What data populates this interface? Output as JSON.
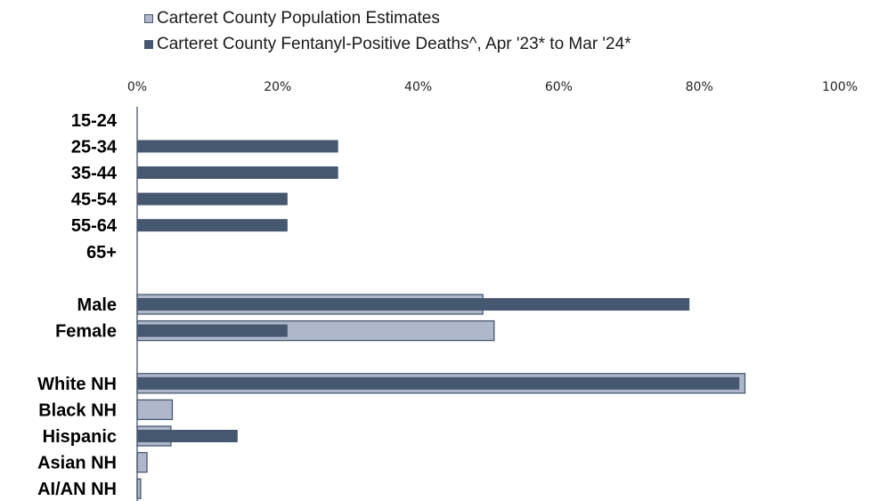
{
  "chart_data": {
    "type": "bar",
    "orientation": "horizontal",
    "legend_position": "top",
    "grid": false,
    "xlim": [
      0,
      100
    ],
    "x_ticks": [
      "0%",
      "20%",
      "40%",
      "60%",
      "80%",
      "100%"
    ],
    "categories": [
      "15-24",
      "25-34",
      "35-44",
      "45-54",
      "55-64",
      "65+",
      "",
      "Male",
      "Female",
      "",
      "White NH",
      "Black NH",
      "Hispanic",
      "Asian NH",
      "AI/AN NH"
    ],
    "series": [
      {
        "name": "Carteret County Population Estimates",
        "color": "#aeb8ca",
        "values": [
          null,
          null,
          null,
          null,
          null,
          null,
          null,
          49.2,
          50.8,
          null,
          86.5,
          5.0,
          4.8,
          1.4,
          0.5
        ]
      },
      {
        "name": "Carteret County Fentanyl-Positive Deaths^, Apr '23* to Mar '24*",
        "color": "#465770",
        "values": [
          0,
          28.6,
          28.6,
          21.4,
          21.4,
          0,
          null,
          78.6,
          21.4,
          null,
          85.7,
          0,
          14.3,
          0,
          0
        ]
      }
    ]
  }
}
